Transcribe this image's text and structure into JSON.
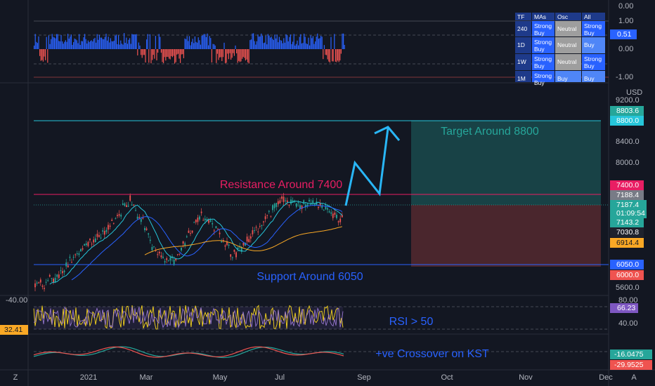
{
  "oscillator": {
    "axis": [
      "0.00",
      "1.00",
      "0.00",
      "-1.00"
    ],
    "tag": "0.51"
  },
  "table": {
    "header": [
      "TF",
      "MAs",
      "Osc",
      "All"
    ],
    "rows": [
      [
        "240",
        "Strong Buy",
        "Neutral",
        "Strong Buy"
      ],
      [
        "1D",
        "Strong Buy",
        "Neutral",
        "Buy"
      ],
      [
        "1W",
        "Strong Buy",
        "Neutral",
        "Strong Buy"
      ],
      [
        "1M",
        "Strong Buy",
        "Buy",
        "Buy"
      ]
    ]
  },
  "price": {
    "currency": "USD",
    "axis": [
      "9200.0",
      "8400.0",
      "8000.0",
      "5600.0"
    ],
    "tags": {
      "p8803": "8803.6",
      "p8800": "8800.0",
      "p7400": "7400.0",
      "p7188": "7188.4",
      "last": "7187.4",
      "countdown": "01:09:54",
      "p7143": "7143.2",
      "p7030": "7030.8",
      "p6914": "6914.4",
      "p6050": "6050.0",
      "p6000": "6000.0"
    },
    "annotations": {
      "target": "Target Around 8800",
      "resistance": "Resistance Around 7400",
      "support": "Support Around 6050"
    }
  },
  "rsi": {
    "left_label": "-40.00",
    "left_tag": "32.41",
    "axis": [
      "80.00",
      "40.00"
    ],
    "tag": "66.23",
    "annotation": "RSI > 50"
  },
  "kst": {
    "tags": [
      "-16.0475",
      "-29.9525"
    ],
    "annotation": "+ve Crossover on KST"
  },
  "time_axis": [
    "2021",
    "Mar",
    "May",
    "Jul",
    "Sep",
    "Oct",
    "Nov",
    "Dec"
  ],
  "corner": {
    "left": "Z",
    "right": "A"
  }
}
